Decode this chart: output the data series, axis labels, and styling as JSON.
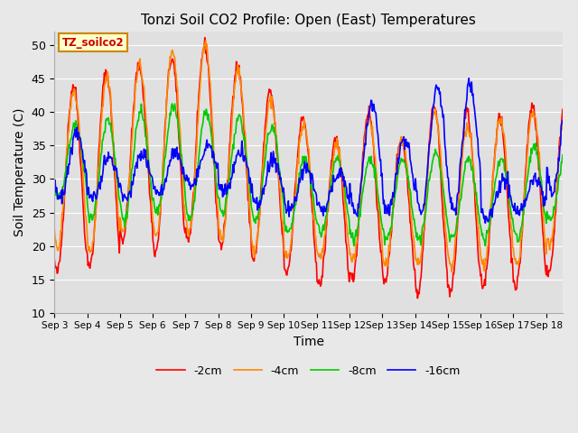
{
  "title": "Tonzi Soil CO2 Profile: Open (East) Temperatures",
  "xlabel": "Time",
  "ylabel": "Soil Temperature (C)",
  "ylim": [
    10,
    52
  ],
  "yticks": [
    10,
    15,
    20,
    25,
    30,
    35,
    40,
    45,
    50
  ],
  "legend_label": "TZ_soilco2",
  "series_labels": [
    "-2cm",
    "-4cm",
    "-8cm",
    "-16cm"
  ],
  "series_colors": [
    "#ff0000",
    "#ff8800",
    "#00cc00",
    "#0000ff"
  ],
  "line_width": 1.2,
  "n_days": 15.5,
  "points_per_day": 48,
  "start_day": 3,
  "xtick_days": [
    3,
    4,
    5,
    6,
    7,
    8,
    9,
    10,
    11,
    12,
    13,
    14,
    15,
    16,
    17,
    18
  ],
  "figsize": [
    6.4,
    4.8
  ],
  "dpi": 100
}
